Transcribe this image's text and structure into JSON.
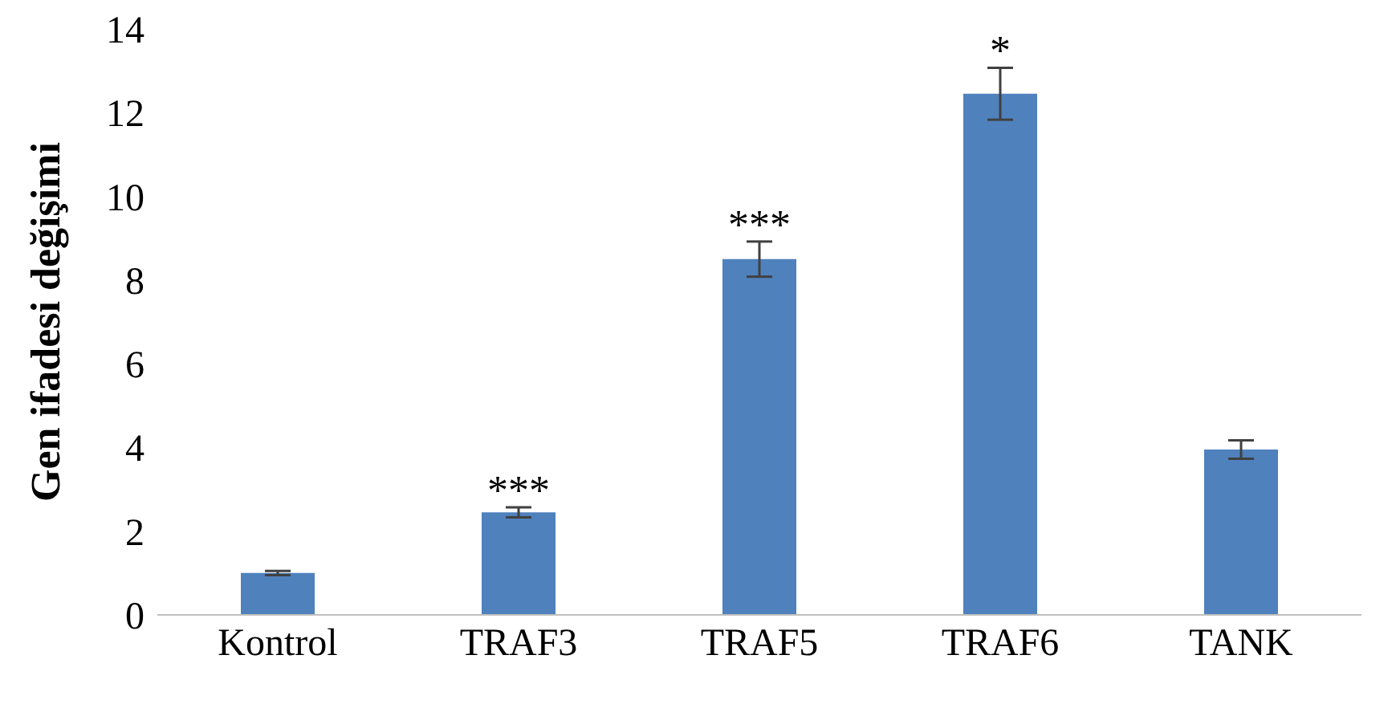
{
  "chart_data": {
    "type": "bar",
    "ylabel": "Gen ifadesi değişimi",
    "categories": [
      "Kontrol",
      "TRAF3",
      "TRAF5",
      "TRAF6",
      "TANK"
    ],
    "values": [
      1.0,
      2.45,
      8.5,
      12.45,
      3.95
    ],
    "errors": [
      0.05,
      0.12,
      0.42,
      0.62,
      0.22
    ],
    "color": "#4f81bd",
    "ylim": [
      0,
      14
    ],
    "yticks": [
      0,
      2,
      4,
      6,
      8,
      10,
      12,
      14
    ],
    "grid": false,
    "annotations": [
      {
        "text": "***",
        "x": "TRAF3",
        "y": 2.65
      },
      {
        "text": "***",
        "x": "TRAF5",
        "y": 9.0
      },
      {
        "text": "*",
        "x": "TRAF6",
        "y": 13.15
      }
    ]
  }
}
